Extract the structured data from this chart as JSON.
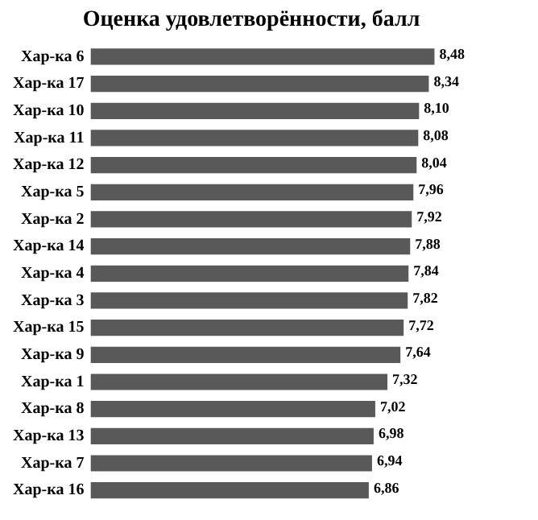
{
  "chart_data": {
    "type": "bar",
    "orientation": "horizontal",
    "title": "Оценка удовлетворённости, балл",
    "categories": [
      "Хар-ка 6",
      "Хар-ка 17",
      "Хар-ка 10",
      "Хар-ка 11",
      "Хар-ка 12",
      "Хар-ка 5",
      "Хар-ка 2",
      "Хар-ка 14",
      "Хар-ка 4",
      "Хар-ка 3",
      "Хар-ка 15",
      "Хар-ка 9",
      "Хар-ка 1",
      "Хар-ка 8",
      "Хар-ка 13",
      "Хар-ка 7",
      "Хар-ка 16"
    ],
    "values": [
      8.48,
      8.34,
      8.1,
      8.08,
      8.04,
      7.96,
      7.92,
      7.88,
      7.84,
      7.82,
      7.72,
      7.64,
      7.32,
      7.02,
      6.98,
      6.94,
      6.86
    ],
    "value_labels": [
      "8,48",
      "8,34",
      "8,10",
      "8,08",
      "8,04",
      "7,96",
      "7,92",
      "7,88",
      "7,84",
      "7,82",
      "7,72",
      "7,64",
      "7,32",
      "7,02",
      "6,98",
      "6,94",
      "6,86"
    ],
    "color": "#595959",
    "tick_labels": "y",
    "legend": false
  }
}
